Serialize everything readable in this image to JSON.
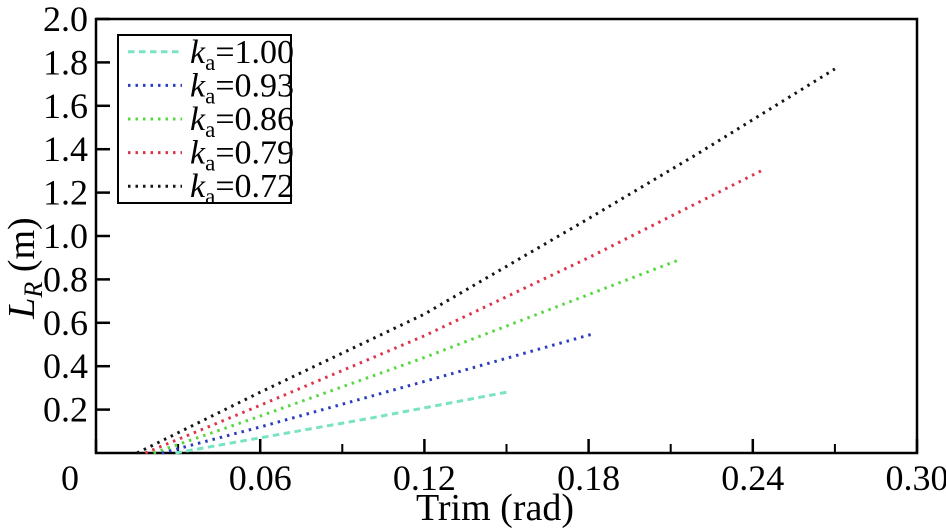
{
  "chart_data": {
    "type": "line",
    "title": "",
    "xlabel": "Trim (rad)",
    "ylabel": {
      "main": "L",
      "sub": "R",
      "unit": " (m)"
    },
    "xlim": [
      0,
      0.3
    ],
    "ylim": [
      0,
      2.0
    ],
    "grid": false,
    "x_major_ticks": [
      0,
      0.06,
      0.12,
      0.18,
      0.24,
      0.3
    ],
    "x_major_labels": [
      "0",
      "0.06",
      "0.12",
      "0.18",
      "0.24",
      "0.30"
    ],
    "x_minor_ticks": [
      0.03,
      0.09,
      0.15,
      0.21,
      0.27
    ],
    "y_major_ticks": [
      0.2,
      0.4,
      0.6,
      0.8,
      1.0,
      1.2,
      1.4,
      1.6,
      1.8,
      2.0
    ],
    "y_major_labels": [
      "0.2",
      "0.4",
      "0.6",
      "0.8",
      "1.0",
      "1.2",
      "1.4",
      "1.6",
      "1.8",
      "2.0"
    ],
    "axis_color": "#000000",
    "legend": {
      "position": "top-left",
      "entries": [
        {
          "k": "k",
          "sub": "a",
          "value": "=1.00"
        },
        {
          "k": "k",
          "sub": "a",
          "value": "=0.93"
        },
        {
          "k": "k",
          "sub": "a",
          "value": "=0.86"
        },
        {
          "k": "k",
          "sub": "a",
          "value": "=0.79"
        },
        {
          "k": "k",
          "sub": "a",
          "value": "=0.72"
        }
      ]
    },
    "series": [
      {
        "name": "ka=1.00",
        "color": "#79e3c3",
        "dash": "6.5 4.5",
        "x": [
          0.029,
          0.06,
          0.1,
          0.15
        ],
        "y": [
          0,
          0.07,
          0.16,
          0.28
        ]
      },
      {
        "name": "ka=0.93",
        "color": "#2b3dbf",
        "dash": "2.5 5",
        "x": [
          0.024,
          0.06,
          0.12,
          0.182
        ],
        "y": [
          0,
          0.12,
          0.33,
          0.55
        ]
      },
      {
        "name": "ka=0.86",
        "color": "#55d83f",
        "dash": "2.5 5",
        "x": [
          0.021,
          0.06,
          0.12,
          0.18,
          0.213
        ],
        "y": [
          0,
          0.17,
          0.44,
          0.73,
          0.89
        ]
      },
      {
        "name": "ka=0.79",
        "color": "#dc3448",
        "dash": "2.5 5",
        "x": [
          0.018,
          0.06,
          0.12,
          0.18,
          0.243
        ],
        "y": [
          0,
          0.22,
          0.54,
          0.9,
          1.3
        ]
      },
      {
        "name": "ka=0.72",
        "color": "#141414",
        "dash": "2.5 5",
        "x": [
          0.015,
          0.06,
          0.12,
          0.18,
          0.22,
          0.27
        ],
        "y": [
          0,
          0.28,
          0.64,
          1.08,
          1.38,
          1.77
        ]
      }
    ]
  }
}
